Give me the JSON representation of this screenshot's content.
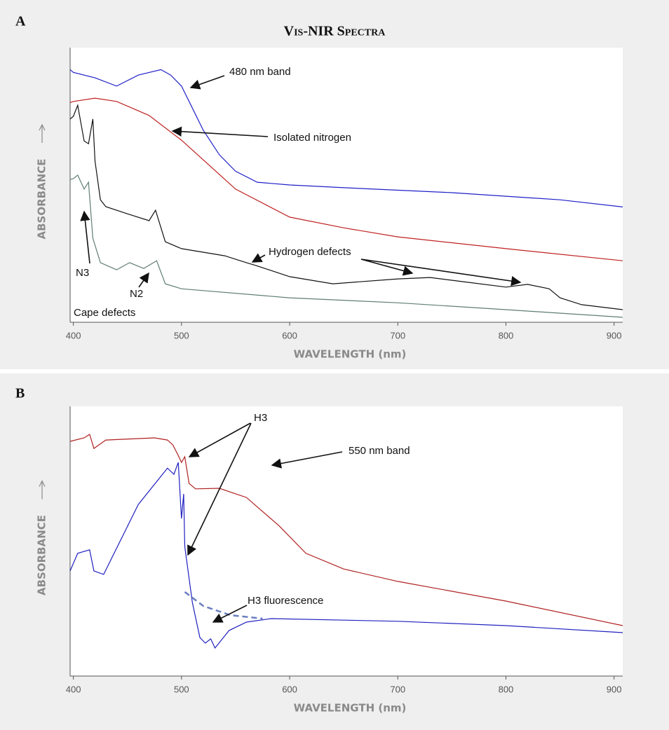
{
  "chart_data": [
    {
      "type": "line",
      "panel": "A",
      "title": "Vis-NIR Spectra",
      "xlabel": "WAVELENGTH (nm)",
      "ylabel": "ABSORBANCE",
      "xlim": [
        397,
        908
      ],
      "xticks": [
        400,
        500,
        600,
        700,
        800,
        900
      ],
      "ylim": [
        0,
        100
      ],
      "series": [
        {
          "color": "#2020c8",
          "x": [
            397,
            400,
            420,
            440,
            460,
            481,
            490,
            500,
            510,
            520,
            535,
            550,
            570,
            600,
            650,
            750,
            850,
            908
          ],
          "values": [
            92,
            91,
            89,
            86,
            90,
            92,
            90,
            86,
            78,
            70,
            61,
            55,
            51,
            50,
            49,
            47.2,
            44.6,
            42
          ]
        },
        {
          "color": "#c02020",
          "x": [
            397,
            400,
            420,
            440,
            470,
            500,
            550,
            600,
            650,
            700,
            800,
            908
          ],
          "values": [
            80,
            80.4,
            81.6,
            80.4,
            75.3,
            66.3,
            48.5,
            38.3,
            34.4,
            31.1,
            26.8,
            22.4
          ]
        },
        {
          "color": "#111111",
          "x": [
            397,
            400,
            404,
            410,
            414,
            418,
            420,
            425,
            430,
            450,
            470,
            476,
            485,
            500,
            540,
            560,
            570,
            600,
            640,
            700,
            730,
            760,
            800,
            820,
            840,
            850,
            870,
            908
          ],
          "values": [
            74,
            75,
            79,
            66,
            65,
            74,
            58.7,
            44.6,
            42.1,
            39.5,
            37,
            40.8,
            29.3,
            26.8,
            24.2,
            21.7,
            20.5,
            16.6,
            14,
            15.8,
            16.3,
            14.8,
            12.8,
            13.8,
            12.2,
            8.9,
            6.4,
            4.6
          ]
        },
        {
          "color": "#5f7d72",
          "x": [
            397,
            400,
            404,
            410,
            414,
            418,
            425,
            440,
            452,
            465,
            477,
            485,
            500,
            600,
            700,
            800,
            908
          ],
          "values": [
            52,
            52.3,
            53.6,
            48.5,
            51,
            30.6,
            21.7,
            19.1,
            21.7,
            19.6,
            22.4,
            14,
            12.2,
            8.9,
            7.1,
            4.6,
            1.8
          ]
        }
      ],
      "annotations": [
        "480 nm band",
        "Isolated nitrogen",
        "Hydrogen defects",
        "N3",
        "N2",
        "Cape defects"
      ]
    },
    {
      "type": "line",
      "panel": "B",
      "xlabel": "WAVELENGTH (nm)",
      "ylabel": "ABSORBANCE",
      "xlim": [
        397,
        908
      ],
      "xticks": [
        400,
        500,
        600,
        700,
        800,
        900
      ],
      "ylim": [
        0,
        100
      ],
      "series": [
        {
          "color": "#b02020",
          "x": [
            397,
            410,
            415,
            419,
            430,
            475,
            487,
            492,
            497,
            500,
            503,
            507,
            513,
            535,
            560,
            590,
            615,
            650,
            700,
            800,
            908
          ],
          "values": [
            87,
            88.3,
            89.6,
            84.4,
            87.5,
            88.3,
            87.5,
            85.7,
            81.8,
            79.2,
            81.3,
            71.4,
            69.4,
            69.6,
            66.2,
            55.8,
            45.5,
            39.7,
            35.1,
            27.8,
            18.7
          ]
        },
        {
          "color": "#2020c0",
          "x": [
            397,
            404,
            415,
            419,
            428,
            460,
            487,
            493,
            497,
            500,
            502,
            503,
            510,
            517,
            522,
            527,
            531,
            544,
            560,
            583,
            700,
            800,
            908
          ],
          "values": [
            39,
            45.5,
            46.8,
            39,
            37.7,
            63.6,
            77.1,
            74.8,
            79.2,
            58.4,
            67.5,
            48,
            27.3,
            14.3,
            12.2,
            13.8,
            10.4,
            16.9,
            20,
            21.3,
            20.3,
            18.7,
            16.1
          ]
        },
        {
          "color": "#6a7fc0",
          "dashed": true,
          "x": [
            503,
            520,
            545,
            575
          ],
          "values": [
            31.2,
            26,
            22.6,
            21.3
          ]
        }
      ],
      "annotations": [
        "H3",
        "550 nm band",
        "H3 fluorescence"
      ]
    }
  ]
}
